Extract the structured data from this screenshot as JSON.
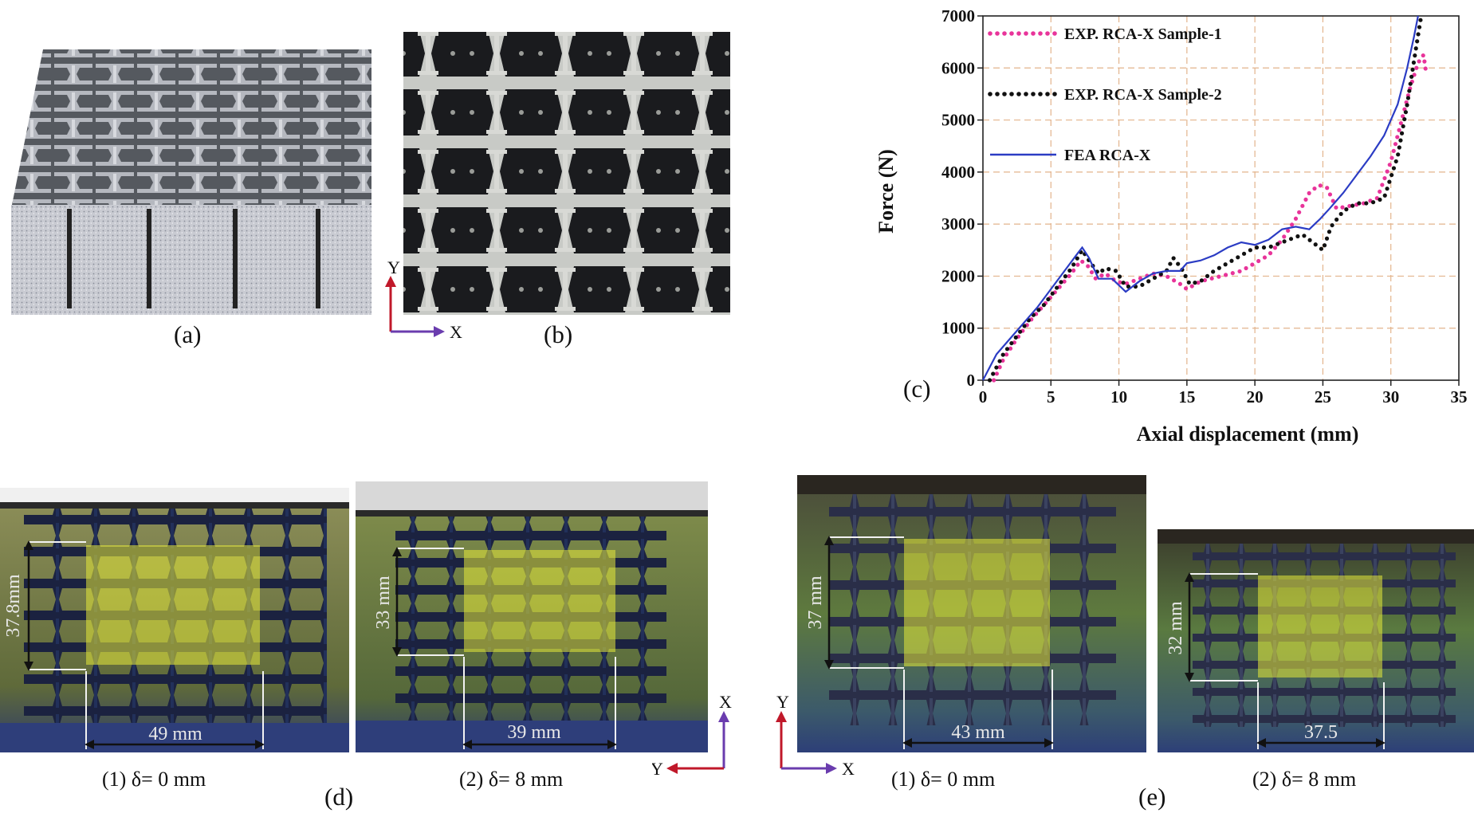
{
  "panels": {
    "a": {
      "caption": "(a)"
    },
    "b": {
      "caption": "(b)",
      "axis_y": "Y",
      "axis_x": "X"
    },
    "c": {
      "caption": "(c)"
    },
    "d": {
      "caption": "(d)",
      "sub1": "(1)  δ= 0 mm",
      "sub2": "(2)  δ= 8 mm",
      "dim1_v": "37.8mm",
      "dim1_h": "49 mm",
      "dim2_v": "33 mm",
      "dim2_h": "39 mm",
      "axis_up": "X",
      "axis_left": "Y"
    },
    "e": {
      "caption": "(e)",
      "sub1": "(1)  δ= 0 mm",
      "sub2": "(2)  δ= 8 mm",
      "dim1_v": "37 mm",
      "dim1_h": "43 mm",
      "dim2_v": "32 mm",
      "dim2_h": "37.5",
      "axis_up": "Y",
      "axis_right": "X"
    }
  },
  "chart_data": {
    "type": "line",
    "xlabel": "Axial displacement (mm)",
    "ylabel": "Force (N)",
    "xlim": [
      0,
      35
    ],
    "ylim": [
      0,
      7000
    ],
    "xticks": [
      0,
      5,
      10,
      15,
      20,
      25,
      30,
      35
    ],
    "yticks": [
      0,
      1000,
      2000,
      3000,
      4000,
      5000,
      6000,
      7000
    ],
    "grid": true,
    "legend_position": "top-left",
    "series": [
      {
        "name": "EXP. RCA-X Sample-1",
        "color": "#e8349a",
        "style": "dotted",
        "x": [
          0.8,
          1.5,
          2.5,
          3.5,
          4.5,
          5.5,
          6.5,
          7.2,
          7.7,
          8.3,
          9.0,
          9.8,
          10.5,
          11.5,
          12.5,
          13.5,
          14.5,
          15.0,
          16.0,
          17.5,
          19.0,
          20.0,
          21.0,
          22.0,
          23.0,
          24.0,
          24.7,
          25.3,
          26.0,
          27.0,
          28.0,
          29.0,
          30.0,
          30.8,
          31.4,
          32.0,
          32.4,
          32.6
        ],
        "y": [
          0,
          400,
          800,
          1150,
          1450,
          1750,
          2050,
          2300,
          2200,
          1950,
          2050,
          1900,
          1850,
          1950,
          2050,
          2000,
          1850,
          1750,
          1900,
          2000,
          2100,
          2250,
          2400,
          2700,
          3100,
          3600,
          3750,
          3700,
          3300,
          3350,
          3400,
          3500,
          4200,
          5000,
          5600,
          6100,
          6250,
          5900
        ]
      },
      {
        "name": "EXP. RCA-X Sample-2",
        "color": "#111111",
        "style": "dotted",
        "x": [
          0.5,
          1.5,
          2.5,
          3.5,
          4.5,
          5.5,
          6.5,
          7.3,
          7.8,
          8.5,
          9.0,
          9.8,
          10.5,
          11.5,
          12.5,
          13.5,
          14.0,
          14.6,
          15.2,
          16.0,
          17.0,
          18.0,
          19.0,
          20.0,
          21.0,
          22.0,
          23.5,
          24.5,
          25.0,
          25.6,
          26.5,
          27.5,
          28.5,
          29.5,
          30.5,
          31.2,
          31.8,
          32.2
        ],
        "y": [
          0,
          500,
          850,
          1200,
          1450,
          1800,
          2150,
          2500,
          2300,
          2050,
          2150,
          2100,
          1800,
          1800,
          1950,
          2100,
          2350,
          2150,
          1850,
          1900,
          2100,
          2250,
          2400,
          2550,
          2550,
          2650,
          2800,
          2600,
          2500,
          2950,
          3250,
          3400,
          3400,
          3500,
          4300,
          5300,
          6300,
          6950
        ]
      },
      {
        "name": "FEA RCA-X",
        "color": "#2b3cc4",
        "style": "solid",
        "x": [
          0,
          1,
          2,
          3,
          4,
          5,
          6,
          7,
          7.3,
          7.8,
          8.5,
          9.5,
          10.5,
          11.5,
          12.5,
          13.5,
          14.5,
          15.0,
          16.0,
          17.0,
          18.0,
          19.0,
          20.0,
          21.0,
          22.0,
          23.0,
          24.0,
          24.8,
          25.5,
          26.5,
          27.5,
          28.5,
          29.5,
          30.5,
          31.2,
          31.7,
          32.0
        ],
        "y": [
          0,
          500,
          800,
          1100,
          1400,
          1750,
          2100,
          2450,
          2550,
          2350,
          1950,
          1950,
          1700,
          1900,
          2050,
          2100,
          2100,
          2250,
          2300,
          2400,
          2550,
          2650,
          2600,
          2700,
          2900,
          2950,
          2900,
          3100,
          3300,
          3600,
          3950,
          4300,
          4700,
          5300,
          6000,
          6600,
          7000
        ]
      }
    ]
  }
}
